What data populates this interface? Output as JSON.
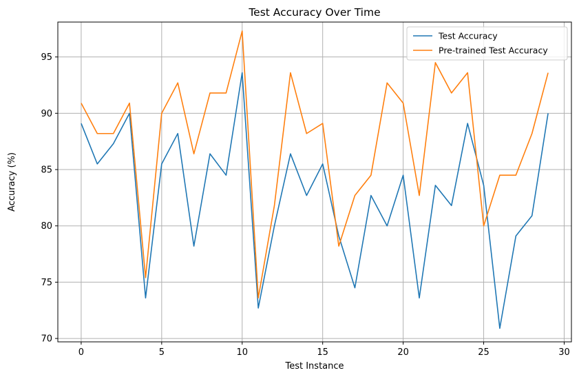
{
  "chart_data": {
    "type": "line",
    "title": "Test Accuracy Over Time",
    "xlabel": "Test Instance",
    "ylabel": "Accuracy (%)",
    "xlim": [
      -1.45,
      30.45
    ],
    "ylim": [
      69.7,
      98.1
    ],
    "xticks": [
      0,
      5,
      10,
      15,
      20,
      25,
      30
    ],
    "yticks": [
      70,
      75,
      80,
      85,
      90,
      95
    ],
    "grid": true,
    "legend_position": "top-right",
    "x": [
      0,
      1,
      2,
      3,
      4,
      5,
      6,
      7,
      8,
      9,
      10,
      11,
      12,
      13,
      14,
      15,
      16,
      17,
      18,
      19,
      20,
      21,
      22,
      23,
      24,
      25,
      26,
      27,
      28,
      29
    ],
    "series": [
      {
        "name": "Test Accuracy",
        "color": "#1f77b4",
        "values": [
          89.1,
          85.5,
          87.3,
          90.0,
          73.6,
          85.5,
          88.2,
          78.2,
          86.4,
          84.5,
          93.6,
          72.7,
          80.0,
          86.4,
          82.7,
          85.5,
          79.1,
          74.5,
          82.7,
          80.0,
          84.5,
          73.6,
          83.6,
          81.8,
          89.1,
          83.6,
          70.9,
          79.1,
          80.9,
          90.0
        ]
      },
      {
        "name": "Pre-trained Test Accuracy",
        "color": "#ff7f0e",
        "values": [
          90.9,
          88.2,
          88.2,
          90.9,
          75.4,
          90.0,
          92.7,
          86.4,
          91.8,
          91.8,
          97.3,
          73.6,
          81.8,
          93.6,
          88.2,
          89.1,
          78.2,
          82.7,
          84.5,
          92.7,
          90.9,
          82.7,
          94.5,
          91.8,
          93.6,
          80.0,
          84.5,
          84.5,
          88.2,
          93.6
        ]
      }
    ]
  }
}
